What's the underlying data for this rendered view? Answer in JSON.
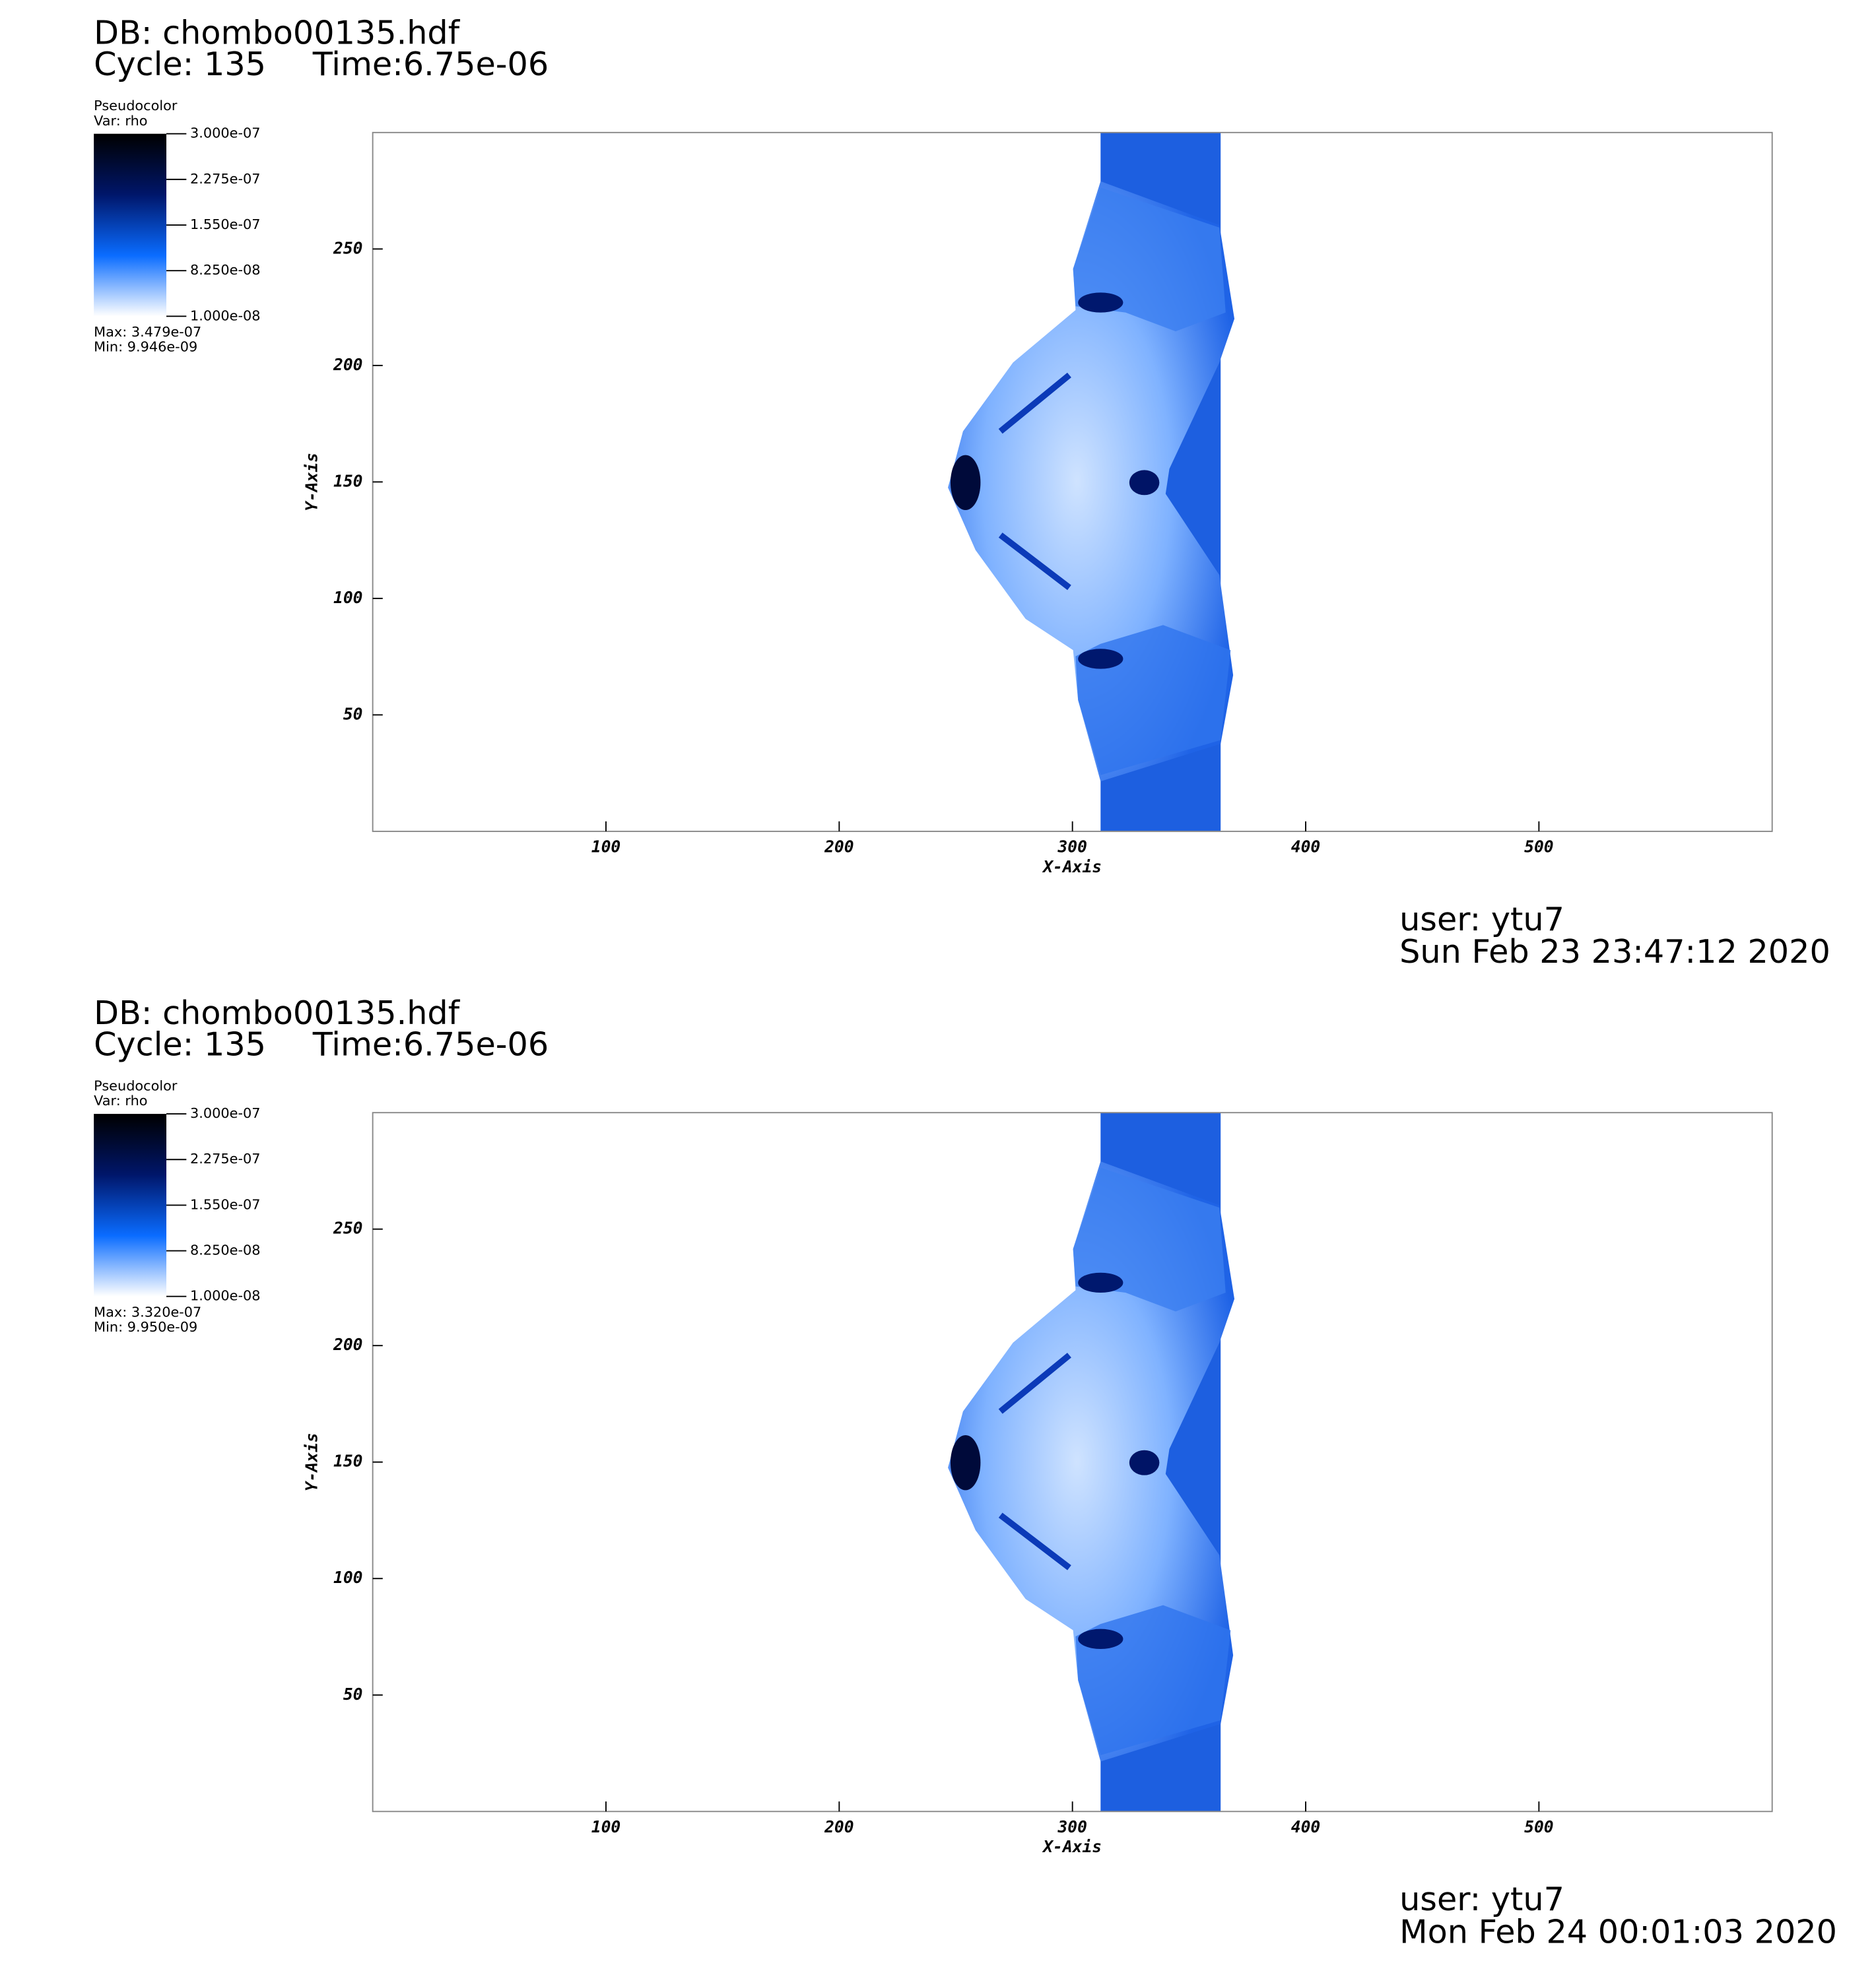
{
  "chart_data": [
    {
      "type": "pseudocolor",
      "title": "DB: chombo00135.hdf",
      "cycle_label": "Cycle: 135",
      "time_label": "Time:6.75e-06",
      "legend": {
        "title": "Pseudocolor",
        "variable": "Var: rho",
        "clim": [
          1e-08,
          3e-07
        ],
        "colors": [
          "#ffffff",
          "#0a6cff",
          "#00166a",
          "#000000"
        ],
        "ticks": [
          {
            "value": 3e-07,
            "label": "3.000e-07"
          },
          {
            "value": 2.275e-07,
            "label": "2.275e-07"
          },
          {
            "value": 1.55e-07,
            "label": "1.550e-07"
          },
          {
            "value": 8.25e-08,
            "label": "8.250e-08"
          },
          {
            "value": 1e-08,
            "label": "1.000e-08"
          }
        ],
        "max_label": "Max:  3.479e-07",
        "min_label": "Min:  9.946e-09"
      },
      "xlabel": "X-Axis",
      "ylabel": "Y-Axis",
      "xlim": [
        0,
        600
      ],
      "ylim": [
        0,
        300
      ],
      "xticks": [
        100,
        200,
        300,
        400,
        500
      ],
      "yticks": [
        50,
        100,
        150,
        200,
        250
      ],
      "user": "user: ytu7",
      "date": "Sun Feb 23 23:47:12 2020"
    },
    {
      "type": "pseudocolor",
      "title": "DB: chombo00135.hdf",
      "cycle_label": "Cycle: 135",
      "time_label": "Time:6.75e-06",
      "legend": {
        "title": "Pseudocolor",
        "variable": "Var: rho",
        "clim": [
          1e-08,
          3e-07
        ],
        "colors": [
          "#ffffff",
          "#0a6cff",
          "#00166a",
          "#000000"
        ],
        "ticks": [
          {
            "value": 3e-07,
            "label": "3.000e-07"
          },
          {
            "value": 2.275e-07,
            "label": "2.275e-07"
          },
          {
            "value": 1.55e-07,
            "label": "1.550e-07"
          },
          {
            "value": 8.25e-08,
            "label": "8.250e-08"
          },
          {
            "value": 1e-08,
            "label": "1.000e-08"
          }
        ],
        "max_label": "Max:  3.320e-07",
        "min_label": "Min:  9.950e-09"
      },
      "xlabel": "X-Axis",
      "ylabel": "Y-Axis",
      "xlim": [
        0,
        600
      ],
      "ylim": [
        0,
        300
      ],
      "xticks": [
        100,
        200,
        300,
        400,
        500
      ],
      "yticks": [
        50,
        100,
        150,
        200,
        250
      ],
      "user": "user: ytu7",
      "date": "Mon Feb 24 00:01:03 2020"
    }
  ]
}
